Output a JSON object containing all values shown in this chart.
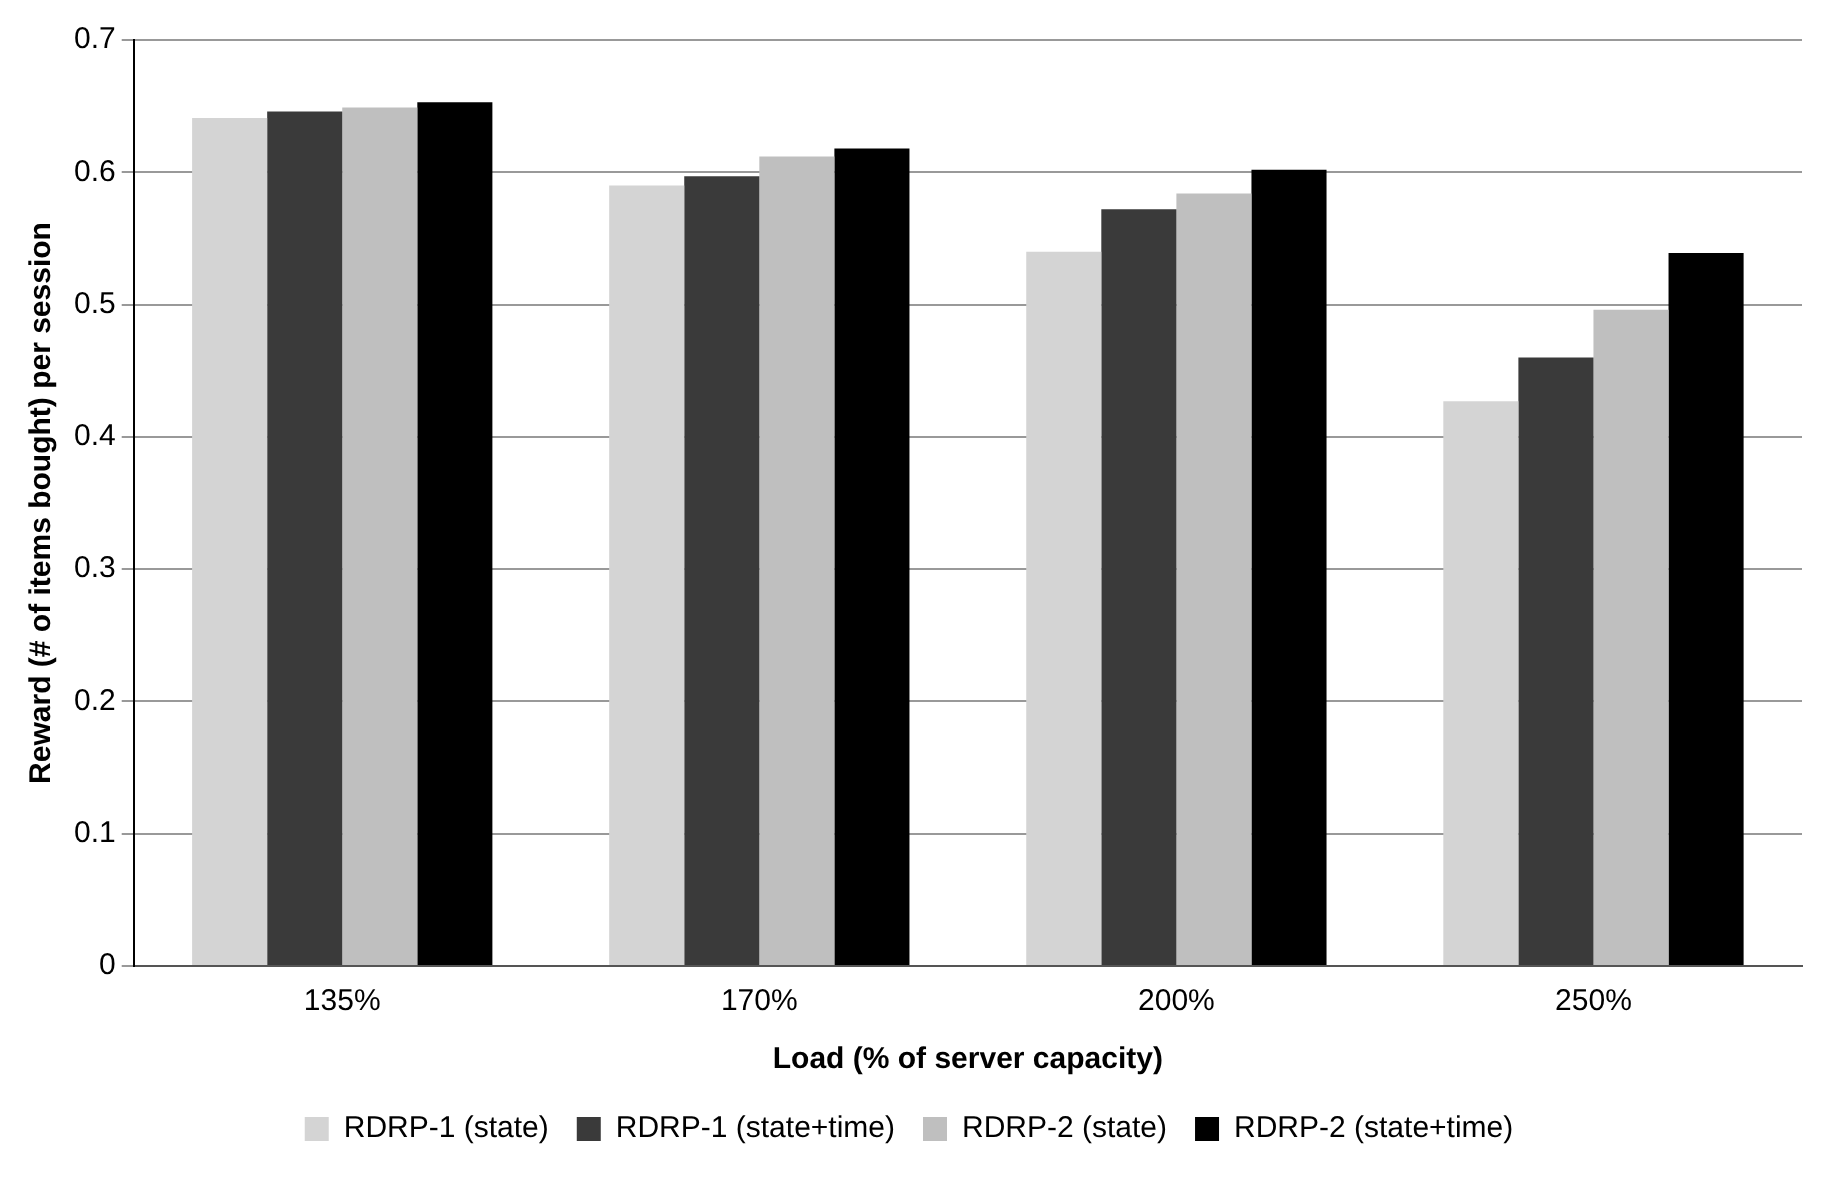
{
  "chart_data": {
    "type": "bar",
    "xlabel": "Load (% of server capacity)",
    "ylabel": "Reward (# of items bought) per session",
    "categories": [
      "135%",
      "170%",
      "200%",
      "250%"
    ],
    "series": [
      {
        "name": "RDRP-1 (state)",
        "color": "#d4d4d4",
        "values": [
          0.641,
          0.59,
          0.54,
          0.427
        ]
      },
      {
        "name": "RDRP-1 (state+time)",
        "color": "#3a3a3a",
        "values": [
          0.646,
          0.597,
          0.572,
          0.46
        ]
      },
      {
        "name": "RDRP-2 (state)",
        "color": "#bfbfbf",
        "values": [
          0.649,
          0.612,
          0.584,
          0.496
        ]
      },
      {
        "name": "RDRP-2 (state+time)",
        "color": "#000000",
        "values": [
          0.653,
          0.618,
          0.602,
          0.539
        ]
      }
    ],
    "ylim": [
      0,
      0.7
    ],
    "yticks": [
      0,
      0.1,
      0.2,
      0.3,
      0.4,
      0.5,
      0.6,
      0.7
    ],
    "grid": "y",
    "legend": "bottom"
  }
}
